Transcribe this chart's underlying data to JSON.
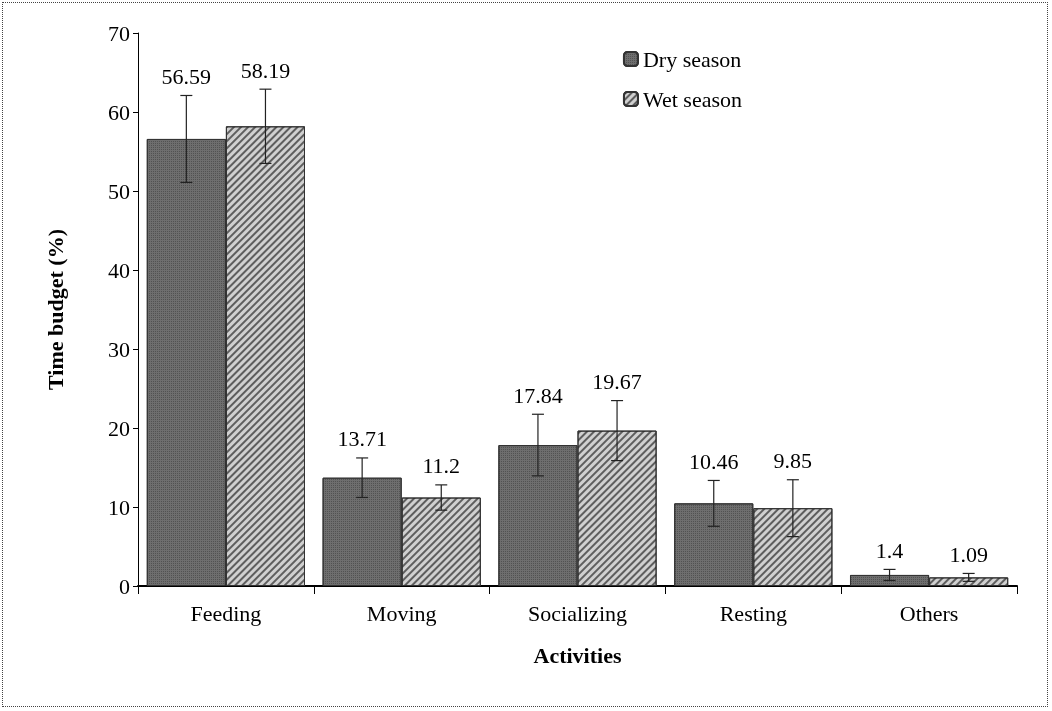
{
  "chart_data": {
    "type": "bar",
    "xlabel": "Activities",
    "ylabel": "Time budget (%)",
    "categories": [
      "Feeding",
      "Moving",
      "Socializing",
      "Resting",
      "Others"
    ],
    "series": [
      {
        "name": "Dry season",
        "color": "#6e6e6e",
        "values": [
          56.59,
          13.71,
          17.84,
          10.46,
          1.4
        ],
        "errors": [
          5.5,
          2.5,
          3.9,
          2.9,
          0.7
        ]
      },
      {
        "name": "Wet season",
        "color": "#d0d0d0",
        "values": [
          58.19,
          11.2,
          19.67,
          9.85,
          1.09
        ],
        "errors": [
          4.7,
          1.6,
          3.8,
          3.6,
          0.5
        ]
      }
    ],
    "ylim": [
      0,
      70
    ],
    "yticks": [
      0,
      10,
      20,
      30,
      40,
      50,
      60,
      70
    ],
    "grid": false,
    "legend": "top right",
    "data_labels": true
  }
}
